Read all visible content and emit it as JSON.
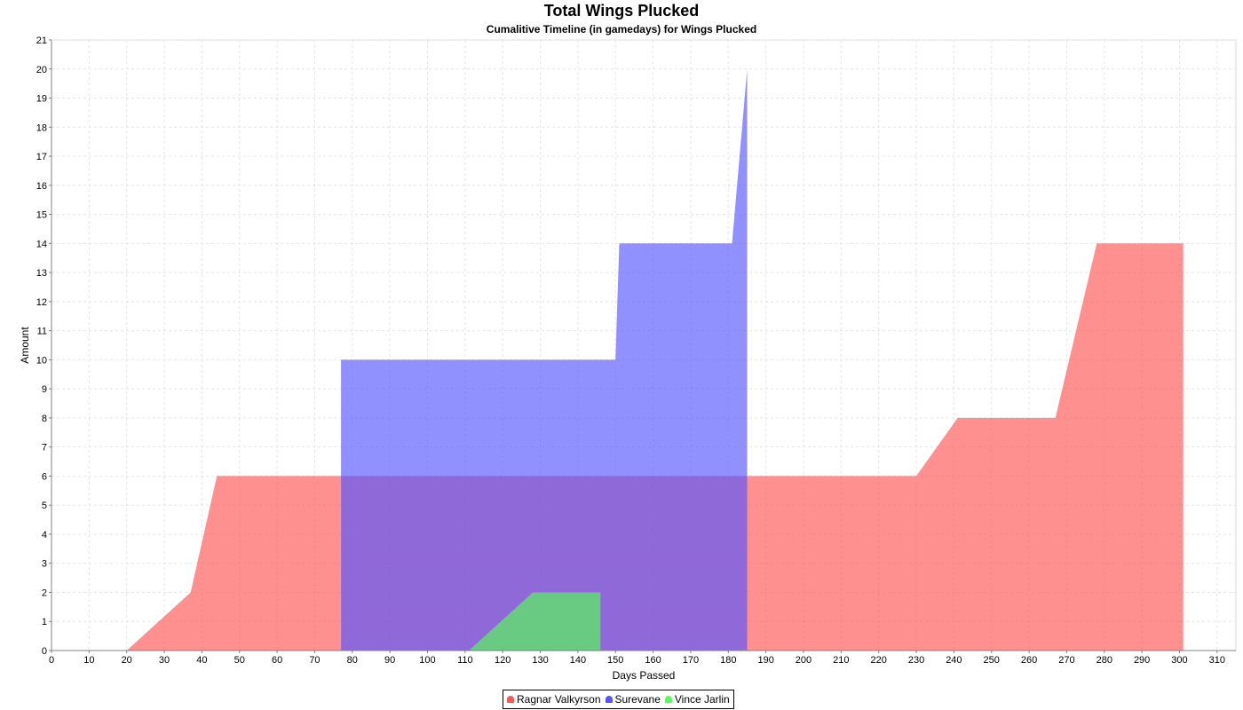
{
  "chart_data": {
    "type": "area",
    "title": "Total Wings Plucked",
    "subtitle": "Cumalitive Timeline (in gamedays) for Wings Plucked",
    "xlabel": "Days Passed",
    "ylabel": "Amount",
    "xlim": [
      0,
      315
    ],
    "ylim": [
      0,
      21
    ],
    "xticks": [
      0,
      10,
      20,
      30,
      40,
      50,
      60,
      70,
      80,
      90,
      100,
      110,
      120,
      130,
      140,
      150,
      160,
      170,
      180,
      190,
      200,
      210,
      220,
      230,
      240,
      250,
      260,
      270,
      280,
      290,
      300,
      310
    ],
    "yticks": [
      0,
      1,
      2,
      3,
      4,
      5,
      6,
      7,
      8,
      9,
      10,
      11,
      12,
      13,
      14,
      15,
      16,
      17,
      18,
      19,
      20,
      21
    ],
    "grid": true,
    "legend_position": "bottom-center",
    "series": [
      {
        "name": "Ragnar Valkyrson",
        "color": "#ff5555",
        "points": [
          [
            19,
            0
          ],
          [
            20,
            0
          ],
          [
            37,
            2
          ],
          [
            44,
            6
          ],
          [
            230,
            6
          ],
          [
            241,
            8
          ],
          [
            267,
            8
          ],
          [
            278,
            14
          ],
          [
            301,
            14
          ],
          [
            301,
            0
          ]
        ]
      },
      {
        "name": "Surevane",
        "color": "#5555ff",
        "points": [
          [
            77,
            0
          ],
          [
            77,
            10
          ],
          [
            150,
            10
          ],
          [
            151,
            14
          ],
          [
            181,
            14
          ],
          [
            185,
            20
          ],
          [
            185,
            0
          ]
        ]
      },
      {
        "name": "Vince Jarlin",
        "color": "#55ff55",
        "points": [
          [
            111,
            0
          ],
          [
            128,
            2
          ],
          [
            146,
            2
          ],
          [
            146,
            0
          ]
        ]
      }
    ]
  }
}
